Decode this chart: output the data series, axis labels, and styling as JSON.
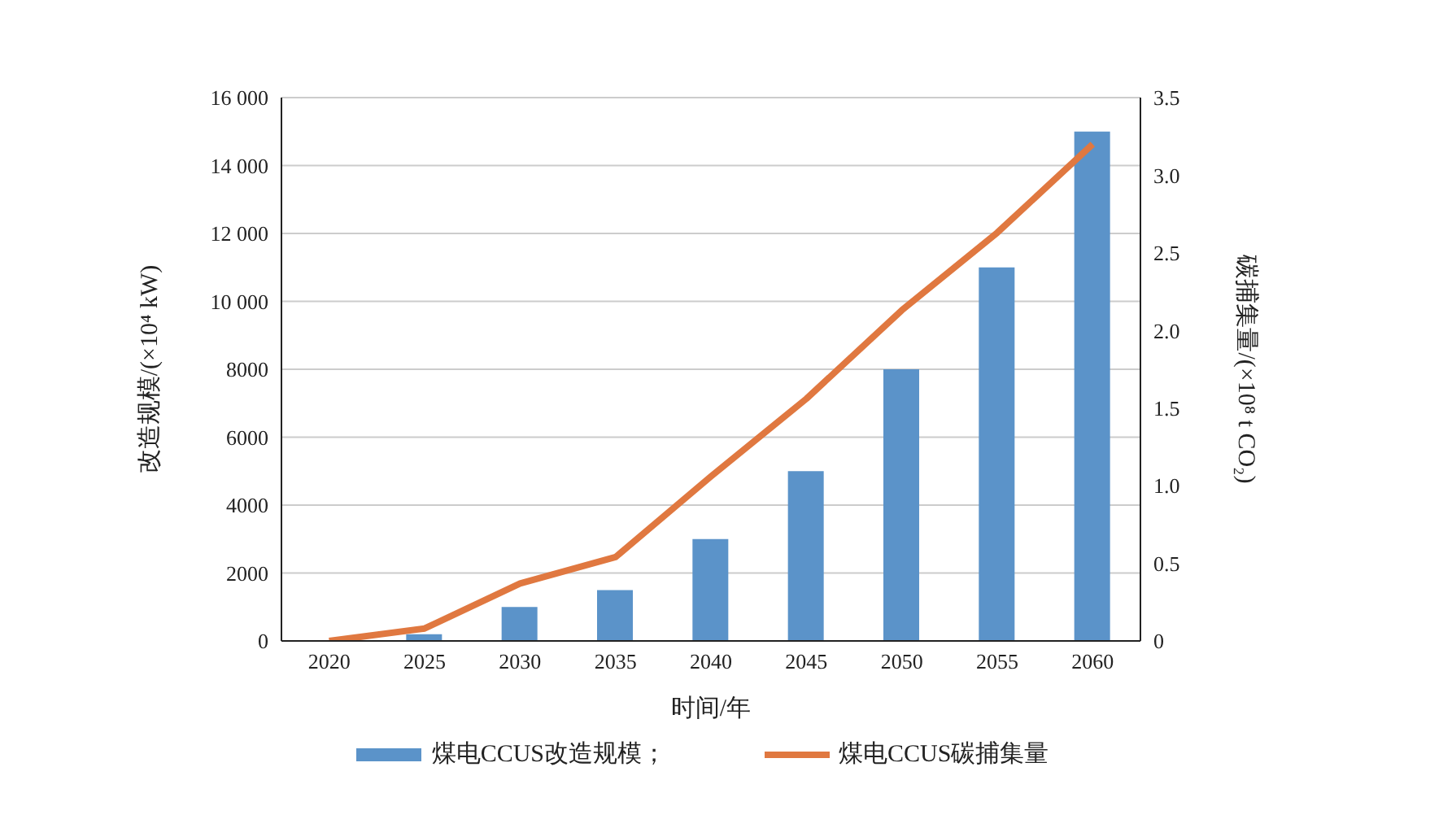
{
  "chart_data": {
    "type": "bar",
    "xlabel": "时间/年",
    "ylabel": "改造规模/(×10⁴ kW)",
    "y2label": "碳捕集量/(×10⁸ t CO₂)",
    "categories": [
      "2020",
      "2025",
      "2030",
      "2035",
      "2040",
      "2045",
      "2050",
      "2055",
      "2060"
    ],
    "series": [
      {
        "name": "煤电CCUS改造规模；",
        "color": "#5b93c9",
        "values": [
          0,
          200,
          1000,
          1500,
          3000,
          5000,
          8000,
          11000,
          15000
        ]
      },
      {
        "name": "煤电CCUS碳捕集量",
        "type": "line",
        "axis": "y2",
        "color": "#e07840",
        "values": [
          0,
          0.08,
          0.37,
          0.54,
          1.06,
          1.56,
          2.13,
          2.63,
          3.2
        ]
      }
    ],
    "ylim": [
      0,
      16000
    ],
    "yticks": [
      0,
      2000,
      4000,
      6000,
      8000,
      {
        "value": 10000,
        "label": "10 000"
      },
      {
        "value": 12000,
        "label": "12 000"
      },
      {
        "value": 14000,
        "label": "14 000"
      },
      {
        "value": 16000,
        "label": "16 000"
      }
    ],
    "y2lim": [
      0,
      3.5
    ],
    "y2ticks": [
      0,
      0.5,
      {
        "value": 1,
        "label": "1.0"
      },
      1.5,
      {
        "value": 2,
        "label": "2.0"
      },
      2.5,
      {
        "value": 3,
        "label": "3.0"
      },
      3.5
    ],
    "grid": "y",
    "legend": "bottom",
    "marker": "none",
    "line_style": "solid"
  }
}
